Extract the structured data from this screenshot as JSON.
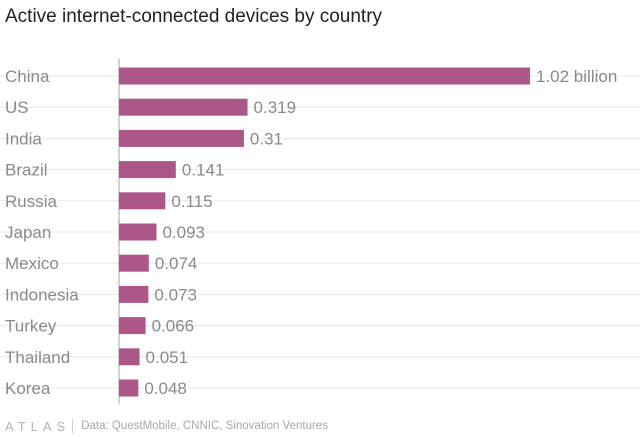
{
  "chart_data": {
    "type": "bar",
    "orientation": "horizontal",
    "title": "Active internet-connected devices by country",
    "categories": [
      "China",
      "US",
      "India",
      "Brazil",
      "Russia",
      "Japan",
      "Mexico",
      "Indonesia",
      "Turkey",
      "Thailand",
      "Korea"
    ],
    "values": [
      1.02,
      0.319,
      0.31,
      0.141,
      0.115,
      0.093,
      0.074,
      0.073,
      0.066,
      0.051,
      0.048
    ],
    "value_labels": [
      "1.02 billion",
      "0.319",
      "0.31",
      "0.141",
      "0.115",
      "0.093",
      "0.074",
      "0.073",
      "0.066",
      "0.051",
      "0.048"
    ],
    "xlim": [
      0,
      1.02
    ],
    "grid": true,
    "bar_color": "#ad5789"
  },
  "footer": {
    "logo_text": "ATLAS",
    "source": "Data: QuestMobile, CNNIC, Sinovation Ventures"
  },
  "colors": {
    "category_label": "#8a8a8a",
    "value_label": "#8a8a8a",
    "gridline": "#e8e8e8",
    "axis": "#a3a3a3"
  }
}
